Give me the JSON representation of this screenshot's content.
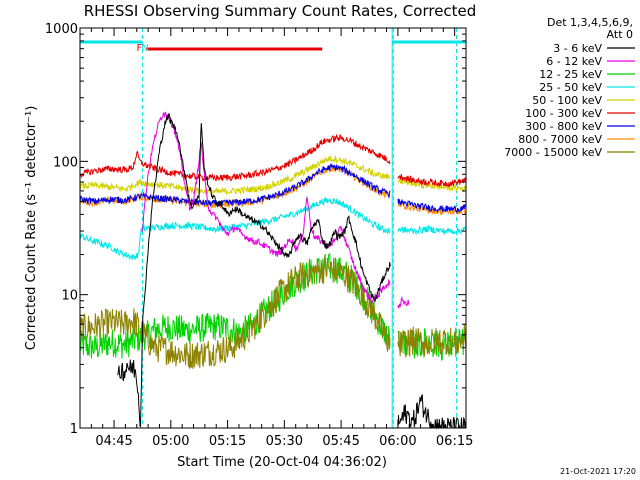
{
  "colors": {
    "e_3_6": "#000000",
    "e_6_12": "#e600e6",
    "e_12_25": "#00d200",
    "e_25_50": "#00e6e6",
    "e_50_100": "#d2d200",
    "e_100_300": "#e60000",
    "e_300_800": "#0000e6",
    "e_800_7000": "#ff8c00",
    "e_7000_15000": "#8c8200",
    "attenuator": "#00e6e6",
    "flare": "#e60000"
  },
  "chart_data": {
    "type": "line",
    "title": "RHESSI Observing Summary Count Rates, Corrected",
    "xlabel": "Start Time (20-Oct-04 04:36:02)",
    "ylabel": "Corrected Count Rate (s⁻¹ detector⁻¹)",
    "x_unit": "minutes after 04:36:02 UT",
    "xlim": [
      0,
      102
    ],
    "ylim": [
      1,
      1000
    ],
    "yscale": "log",
    "xticks": [
      {
        "label": "04:45",
        "x": 9
      },
      {
        "label": "05:00",
        "x": 24
      },
      {
        "label": "05:15",
        "x": 39
      },
      {
        "label": "05:30",
        "x": 54
      },
      {
        "label": "05:45",
        "x": 69
      },
      {
        "label": "06:00",
        "x": 84
      },
      {
        "label": "06:15",
        "x": 99
      }
    ],
    "yticks": [
      {
        "label": "1000",
        "y": 1000
      },
      {
        "label": "100",
        "y": 100
      },
      {
        "label": "10",
        "y": 10
      },
      {
        "label": "1",
        "y": 1
      }
    ],
    "legend_header": [
      "Det 1,3,4,5,6,9,",
      "Att 0"
    ],
    "legend_position": "outside-right",
    "night_intervals": [
      [
        -2,
        16.5
      ],
      [
        82.5,
        104
      ]
    ],
    "flag_labels": [
      {
        "text": "F",
        "x": 15.7
      },
      {
        "text": "N",
        "x": 17.2
      }
    ],
    "flare_bar": [
      17.5,
      64
    ],
    "series": [
      {
        "key": "e_3_6",
        "name": "3 - 6 keV",
        "x": [
          10,
          11,
          12,
          12.5,
          13,
          14,
          15,
          16,
          16.5,
          17,
          18,
          19,
          19.5,
          20,
          20.5,
          21,
          21.5,
          22,
          22.5,
          23,
          23.5,
          24,
          25,
          26,
          27,
          28,
          28.5,
          29,
          29.5,
          30,
          31,
          31.5,
          32,
          32.5,
          33,
          33.5,
          34,
          35,
          36,
          37,
          38,
          39,
          40,
          41,
          42,
          43,
          44,
          45,
          46,
          47,
          48,
          49,
          50,
          51,
          52,
          53,
          54,
          55,
          56,
          57,
          58,
          59,
          60,
          61,
          62,
          63,
          64,
          65,
          66,
          66.5,
          67,
          67.5,
          68,
          69,
          70,
          71,
          72,
          73,
          74,
          75,
          76,
          77,
          78,
          79,
          80,
          81,
          82
        ],
        "y": [
          2.3,
          2.8,
          2.6,
          3.2,
          2.7,
          2.9,
          2.5,
          1.1,
          6,
          9,
          22,
          45,
          60,
          72,
          95,
          120,
          140,
          170,
          195,
          210,
          220,
          200,
          180,
          150,
          100,
          75,
          60,
          50,
          45,
          48,
          52,
          55,
          210,
          120,
          80,
          75,
          65,
          55,
          50,
          48,
          45,
          40,
          42,
          44,
          43,
          40,
          38,
          37,
          36,
          34,
          33,
          31,
          28,
          26,
          24,
          22,
          20,
          19,
          22,
          26,
          28,
          26,
          24,
          30,
          34,
          36,
          26,
          23,
          24,
          26,
          28,
          30,
          27,
          28,
          30,
          38,
          30,
          24,
          18,
          14,
          12,
          10,
          9,
          11,
          13,
          15,
          17
        ]
      },
      {
        "key": "e_6_12",
        "name": "6 - 12 keV",
        "x": [
          16.5,
          17,
          18,
          19,
          20,
          21,
          22,
          23,
          24,
          25,
          26,
          27,
          28,
          29,
          30,
          31,
          32,
          33,
          34,
          35,
          36,
          37,
          38,
          39,
          40,
          41,
          42,
          43,
          44,
          45,
          46,
          47,
          48,
          49,
          50,
          51,
          52,
          53,
          54,
          55,
          56,
          57,
          58,
          59,
          60,
          61,
          62,
          63,
          64,
          65,
          66,
          67,
          68,
          69,
          70,
          71,
          72,
          73,
          74,
          75,
          76,
          77,
          78,
          79,
          80,
          81,
          82
        ],
        "y": [
          30,
          45,
          80,
          120,
          160,
          200,
          230,
          225,
          200,
          170,
          130,
          90,
          60,
          45,
          50,
          80,
          140,
          70,
          45,
          40,
          38,
          34,
          30,
          29,
          30,
          32,
          30,
          28,
          27,
          26,
          25,
          25,
          24,
          23,
          22,
          21,
          20,
          21,
          23,
          25,
          26,
          22,
          24,
          30,
          55,
          33,
          27,
          26,
          25,
          24,
          23,
          25,
          28,
          32,
          26,
          22,
          18,
          15,
          13,
          11,
          10,
          9,
          9.5,
          10,
          11,
          12,
          12.5
        ]
      },
      {
        "key": "e_12_25",
        "name": "12 - 25 keV",
        "x": [
          0,
          4,
          8,
          12,
          14,
          16,
          18,
          20,
          24,
          28,
          32,
          36,
          40,
          42,
          44,
          46,
          48,
          50,
          52,
          54,
          56,
          58,
          60,
          62,
          64,
          66,
          68,
          70,
          72,
          74,
          76,
          78,
          80,
          82
        ],
        "y": [
          4.2,
          4,
          4.4,
          4.2,
          4.5,
          4.8,
          5,
          5.5,
          5.7,
          5.4,
          5.6,
          5.8,
          5.5,
          5.2,
          5.5,
          6,
          7,
          8,
          9,
          10.5,
          12,
          13,
          14,
          15,
          16,
          16,
          15.5,
          14.5,
          13,
          11,
          9,
          7,
          5.5,
          4.6
        ]
      },
      {
        "key": "e_25_50",
        "name": "25 - 50 keV",
        "x": [
          0,
          2,
          4,
          6,
          8,
          10,
          12,
          14,
          15.5,
          16,
          17,
          20,
          24,
          28,
          32,
          36,
          40,
          44,
          48,
          52,
          56,
          60,
          62,
          64,
          66,
          68,
          70,
          72,
          74,
          76,
          78,
          80,
          82
        ],
        "y": [
          28,
          26,
          25,
          24,
          23,
          21,
          20,
          19,
          20,
          30,
          31,
          32,
          33,
          33,
          32,
          31,
          32,
          33,
          35,
          37,
          40,
          44,
          47,
          50,
          51,
          50,
          47,
          43,
          39,
          36,
          33,
          31,
          30
        ]
      },
      {
        "key": "e_50_100",
        "name": "50 - 100 keV",
        "x": [
          0,
          4,
          8,
          12,
          14,
          16,
          18,
          20,
          24,
          28,
          32,
          36,
          40,
          44,
          48,
          52,
          56,
          60,
          62,
          64,
          66,
          68,
          70,
          72,
          74,
          76,
          78,
          80,
          82
        ],
        "y": [
          65,
          66,
          64,
          62,
          66,
          70,
          68,
          67,
          65,
          62,
          60,
          59,
          60,
          61,
          63,
          68,
          75,
          86,
          92,
          100,
          105,
          104,
          100,
          95,
          90,
          85,
          80,
          78,
          76
        ]
      },
      {
        "key": "e_100_300",
        "name": "100 - 300 keV",
        "x": [
          0,
          4,
          8,
          12,
          14,
          15,
          16,
          18,
          20,
          24,
          28,
          32,
          36,
          40,
          44,
          48,
          52,
          56,
          60,
          62,
          64,
          66,
          68,
          70,
          72,
          74,
          76,
          78,
          80,
          82
        ],
        "y": [
          80,
          85,
          88,
          86,
          90,
          115,
          98,
          92,
          88,
          82,
          78,
          76,
          75,
          76,
          78,
          82,
          88,
          98,
          115,
          125,
          140,
          145,
          150,
          148,
          140,
          130,
          122,
          115,
          108,
          100
        ]
      },
      {
        "key": "e_300_800",
        "name": "300 - 800 keV",
        "x": [
          0,
          4,
          8,
          12,
          14,
          16,
          18,
          20,
          24,
          28,
          32,
          36,
          40,
          44,
          48,
          52,
          56,
          60,
          62,
          64,
          66,
          68,
          70,
          72,
          74,
          76,
          78,
          80,
          82
        ],
        "y": [
          52,
          50,
          52,
          51,
          53,
          55,
          54,
          53,
          52,
          50,
          49,
          48,
          49,
          50,
          52,
          56,
          62,
          72,
          80,
          86,
          90,
          90,
          86,
          80,
          74,
          68,
          63,
          59,
          57
        ]
      },
      {
        "key": "e_800_7000",
        "name": "800 - 7000 keV",
        "x": [
          0,
          4,
          8,
          12,
          14,
          16,
          18,
          20,
          24,
          28,
          32,
          36,
          40,
          44,
          48,
          52,
          56,
          60,
          62,
          64,
          66,
          68,
          70,
          72,
          74,
          76,
          78,
          80,
          82
        ],
        "y": [
          50,
          49,
          51,
          50,
          52,
          54,
          53,
          52,
          51,
          49,
          48,
          47,
          48,
          49,
          51,
          55,
          61,
          70,
          78,
          84,
          88,
          88,
          84,
          78,
          72,
          66,
          61,
          57,
          55
        ]
      },
      {
        "key": "e_7000_15000",
        "name": "7000 - 15000 keV",
        "x": [
          0,
          4,
          8,
          12,
          14,
          16,
          18,
          20,
          24,
          28,
          32,
          36,
          40,
          42,
          44,
          46,
          48,
          50,
          52,
          54,
          56,
          58,
          60,
          62,
          64,
          66,
          68,
          70,
          72,
          74,
          76,
          78,
          80,
          82
        ],
        "y": [
          5.5,
          5.8,
          6.2,
          6,
          6.5,
          5.5,
          4.5,
          4,
          3.8,
          3.5,
          3.6,
          3.8,
          4,
          4.5,
          5,
          5.8,
          6.8,
          8,
          9.5,
          11,
          12.5,
          13.5,
          14.5,
          15,
          15.5,
          15.5,
          15,
          14,
          12.5,
          10.5,
          8.5,
          6.8,
          5.2,
          4.2
        ]
      }
    ],
    "late_series": [
      {
        "key": "e_3_6",
        "x": [
          84,
          86,
          88,
          90,
          92,
          94,
          96,
          98,
          100,
          102
        ],
        "y": [
          1.05,
          1.3,
          1.1,
          1.6,
          1.2,
          1.05,
          1.02,
          1.01,
          1.01,
          1.01
        ]
      },
      {
        "key": "e_6_12",
        "x": [
          84,
          85,
          86,
          87
        ],
        "y": [
          8,
          9,
          8.5,
          8.7
        ]
      },
      {
        "key": "e_12_25",
        "x": [
          84,
          88,
          92,
          96,
          100,
          102
        ],
        "y": [
          4.5,
          4.2,
          4.4,
          4.1,
          4.3,
          4.5
        ]
      },
      {
        "key": "e_25_50",
        "x": [
          84,
          88,
          92,
          96,
          100,
          102
        ],
        "y": [
          31,
          30,
          31,
          30,
          30,
          31
        ]
      },
      {
        "key": "e_50_100",
        "x": [
          84,
          88,
          92,
          96,
          100,
          102
        ],
        "y": [
          72,
          68,
          66,
          64,
          63,
          62
        ]
      },
      {
        "key": "e_100_300",
        "x": [
          84,
          88,
          92,
          96,
          100,
          102
        ],
        "y": [
          78,
          72,
          70,
          68,
          70,
          72
        ]
      },
      {
        "key": "e_300_800",
        "x": [
          84,
          88,
          92,
          96,
          100,
          102
        ],
        "y": [
          50,
          47,
          45,
          44,
          44,
          45
        ]
      },
      {
        "key": "e_800_7000",
        "x": [
          84,
          88,
          92,
          96,
          100,
          102
        ],
        "y": [
          48,
          45,
          43,
          42,
          42,
          43
        ]
      },
      {
        "key": "e_7000_15000",
        "x": [
          84,
          88,
          92,
          96,
          100,
          102
        ],
        "y": [
          4.2,
          4.5,
          4.3,
          4.6,
          4.4,
          4.8
        ]
      }
    ],
    "timestamp": "21-Oct-2021 17:20"
  }
}
